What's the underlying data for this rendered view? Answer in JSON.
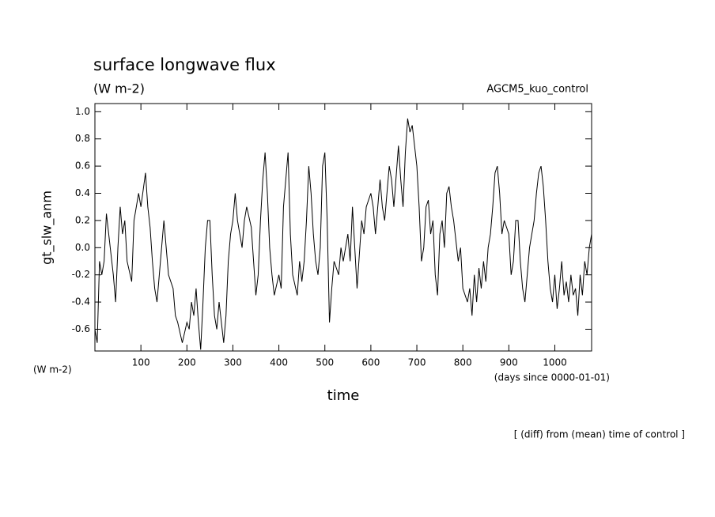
{
  "chart_data": {
    "type": "line",
    "title": "surface longwave flux",
    "unit": "(W m-2)",
    "run_label": "AGCM5_kuo_control",
    "y_label": "gt_slw_anm",
    "y_unit": "(W m-2)",
    "x_label": "time",
    "x_unit": "(days since 0000-01-01)",
    "note": "[ (diff) from (mean) time of control ]",
    "xlim": [
      0,
      1080
    ],
    "ylim": [
      -0.76,
      1.06
    ],
    "xticks": [
      100,
      200,
      300,
      400,
      500,
      600,
      700,
      800,
      900,
      1000
    ],
    "yticks": [
      -0.6,
      -0.4,
      -0.2,
      {
        "value": 0,
        "label": "0.0"
      },
      0.2,
      0.4,
      0.6,
      0.8,
      {
        "value": 1,
        "label": "1.0"
      }
    ],
    "x": [
      0,
      5,
      10,
      15,
      20,
      25,
      30,
      40,
      45,
      50,
      55,
      60,
      65,
      70,
      80,
      85,
      95,
      100,
      110,
      115,
      120,
      125,
      130,
      135,
      140,
      150,
      155,
      160,
      170,
      175,
      180,
      190,
      200,
      205,
      210,
      215,
      220,
      225,
      230,
      235,
      240,
      245,
      250,
      255,
      260,
      265,
      270,
      280,
      285,
      290,
      295,
      300,
      305,
      310,
      315,
      320,
      325,
      330,
      340,
      345,
      350,
      355,
      360,
      365,
      370,
      375,
      380,
      385,
      390,
      400,
      405,
      410,
      420,
      425,
      430,
      440,
      445,
      450,
      455,
      460,
      465,
      470,
      475,
      480,
      485,
      490,
      495,
      500,
      505,
      510,
      515,
      520,
      530,
      535,
      540,
      550,
      555,
      560,
      565,
      570,
      580,
      585,
      590,
      600,
      605,
      610,
      620,
      625,
      630,
      640,
      645,
      650,
      660,
      665,
      670,
      675,
      680,
      685,
      690,
      695,
      700,
      705,
      710,
      715,
      720,
      725,
      730,
      735,
      740,
      745,
      750,
      755,
      760,
      765,
      770,
      775,
      780,
      790,
      795,
      800,
      810,
      815,
      820,
      825,
      830,
      835,
      840,
      845,
      850,
      855,
      860,
      865,
      870,
      875,
      880,
      885,
      890,
      900,
      905,
      910,
      915,
      920,
      925,
      930,
      935,
      940,
      945,
      950,
      955,
      960,
      965,
      970,
      975,
      980,
      985,
      990,
      995,
      1000,
      1005,
      1010,
      1015,
      1020,
      1025,
      1030,
      1035,
      1040,
      1045,
      1050,
      1055,
      1060,
      1065,
      1070,
      1075,
      1080
    ],
    "series": [
      {
        "name": "gt_slw_anm",
        "color": "#000000",
        "values": [
          -0.6,
          -0.7,
          -0.1,
          -0.2,
          -0.1,
          0.25,
          0.1,
          -0.2,
          -0.4,
          0.0,
          0.3,
          0.1,
          0.2,
          -0.1,
          -0.25,
          0.2,
          0.4,
          0.3,
          0.55,
          0.3,
          0.15,
          -0.1,
          -0.3,
          -0.4,
          -0.2,
          0.2,
          0.0,
          -0.2,
          -0.3,
          -0.5,
          -0.55,
          -0.7,
          -0.55,
          -0.6,
          -0.4,
          -0.5,
          -0.3,
          -0.55,
          -0.75,
          -0.4,
          0.0,
          0.2,
          0.2,
          -0.2,
          -0.5,
          -0.6,
          -0.4,
          -0.7,
          -0.5,
          -0.1,
          0.1,
          0.2,
          0.4,
          0.2,
          0.1,
          0.0,
          0.2,
          0.3,
          0.15,
          -0.1,
          -0.35,
          -0.2,
          0.2,
          0.5,
          0.7,
          0.4,
          0.0,
          -0.2,
          -0.35,
          -0.2,
          -0.3,
          0.3,
          0.7,
          0.1,
          -0.2,
          -0.35,
          -0.1,
          -0.25,
          -0.1,
          0.2,
          0.6,
          0.4,
          0.1,
          -0.1,
          -0.2,
          0.0,
          0.6,
          0.7,
          0.2,
          -0.55,
          -0.3,
          -0.1,
          -0.2,
          0.0,
          -0.1,
          0.1,
          -0.1,
          0.3,
          0.0,
          -0.3,
          0.2,
          0.1,
          0.3,
          0.4,
          0.3,
          0.1,
          0.5,
          0.3,
          0.2,
          0.6,
          0.5,
          0.3,
          0.75,
          0.5,
          0.3,
          0.7,
          0.95,
          0.85,
          0.9,
          0.75,
          0.6,
          0.3,
          -0.1,
          0.0,
          0.3,
          0.35,
          0.1,
          0.2,
          -0.2,
          -0.35,
          0.1,
          0.2,
          0.0,
          0.4,
          0.45,
          0.3,
          0.2,
          -0.1,
          0.0,
          -0.3,
          -0.4,
          -0.3,
          -0.5,
          -0.2,
          -0.4,
          -0.15,
          -0.3,
          -0.1,
          -0.25,
          0.0,
          0.1,
          0.3,
          0.55,
          0.6,
          0.4,
          0.1,
          0.2,
          0.1,
          -0.2,
          -0.1,
          0.2,
          0.2,
          -0.1,
          -0.3,
          -0.4,
          -0.2,
          0.0,
          0.1,
          0.2,
          0.4,
          0.55,
          0.6,
          0.45,
          0.2,
          -0.1,
          -0.3,
          -0.4,
          -0.2,
          -0.45,
          -0.3,
          -0.1,
          -0.35,
          -0.25,
          -0.4,
          -0.2,
          -0.35,
          -0.3,
          -0.5,
          -0.2,
          -0.35,
          -0.1,
          -0.2,
          0.0,
          0.1
        ]
      }
    ]
  }
}
